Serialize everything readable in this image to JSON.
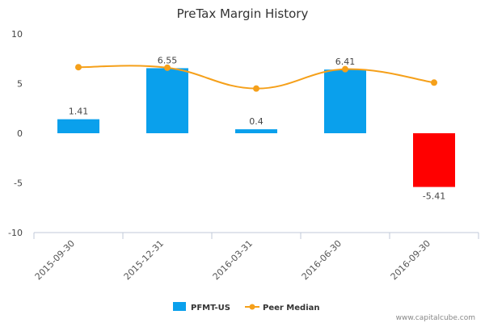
{
  "chart_data": {
    "type": "bar",
    "title": "PreTax Margin History",
    "xlabel": "",
    "ylabel": "",
    "categories": [
      "2015-09-30",
      "2015-12-31",
      "2016-03-31",
      "2016-06-30",
      "2016-09-30"
    ],
    "ylim": [
      -10,
      10
    ],
    "yticks": [
      10,
      5,
      0,
      -5,
      -10
    ],
    "series": [
      {
        "name": "PFMT-US",
        "type": "bar",
        "values": [
          1.41,
          6.55,
          0.4,
          6.41,
          -5.41
        ],
        "data_labels": [
          "1.41",
          "6.55",
          "0.4",
          "6.41",
          "-5.41"
        ]
      },
      {
        "name": "Peer Median",
        "type": "line",
        "smooth": true,
        "values": [
          6.65,
          6.6,
          4.5,
          6.45,
          5.1
        ]
      }
    ],
    "legend_position": "bottom-center",
    "grid": false
  },
  "colors": {
    "bar_positive": "#0aa0ec",
    "bar_negative": "#ff0000",
    "median_line": "#f5a01a",
    "axis": "#c0cad8"
  },
  "credit": "www.capitalcube.com"
}
